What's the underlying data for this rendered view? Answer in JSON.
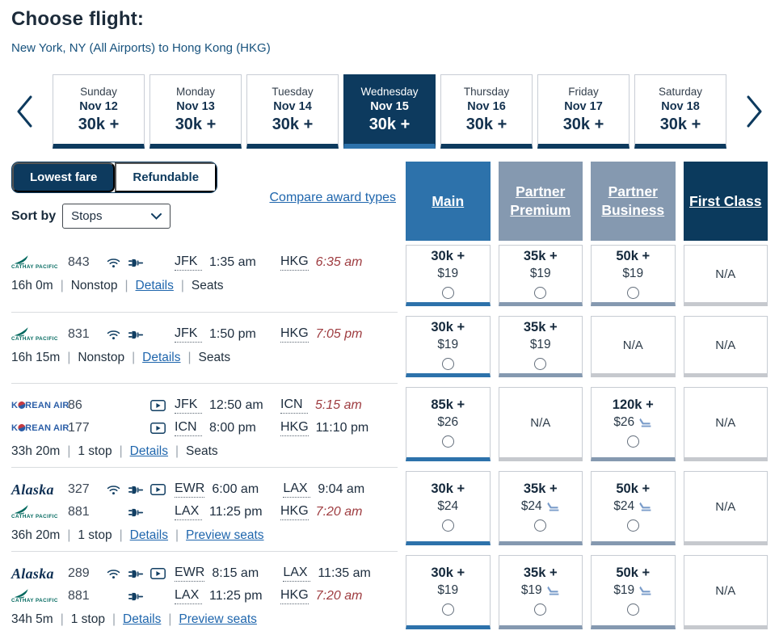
{
  "header": {
    "title": "Choose flight:",
    "subtitle": "New York, NY (All Airports) to Hong Kong (HKG)"
  },
  "colors": {
    "navy": "#0d3a5e",
    "main_blue": "#2d72ab",
    "partner_gray_blue": "#8599b0",
    "link_blue": "#1f66ad",
    "next_day_red": "#9e3c40"
  },
  "carousel": {
    "days": [
      {
        "day": "Sunday",
        "date": "Nov 12",
        "fare": "30k +",
        "selected": false
      },
      {
        "day": "Monday",
        "date": "Nov 13",
        "fare": "30k +",
        "selected": false
      },
      {
        "day": "Tuesday",
        "date": "Nov 14",
        "fare": "30k +",
        "selected": false
      },
      {
        "day": "Wednesday",
        "date": "Nov 15",
        "fare": "30k +",
        "selected": true
      },
      {
        "day": "Thursday",
        "date": "Nov 16",
        "fare": "30k +",
        "selected": false
      },
      {
        "day": "Friday",
        "date": "Nov 17",
        "fare": "30k +",
        "selected": false
      },
      {
        "day": "Saturday",
        "date": "Nov 18",
        "fare": "30k +",
        "selected": false
      }
    ]
  },
  "controls": {
    "toggle": [
      {
        "label": "Lowest fare",
        "selected": true
      },
      {
        "label": "Refundable",
        "selected": false
      }
    ],
    "compare_link": "Compare award types",
    "sort_label": "Sort by",
    "sort_value": "Stops"
  },
  "columns": [
    {
      "label": "Main",
      "style": "main"
    },
    {
      "label": "Partner Premium",
      "style": "partner"
    },
    {
      "label": "Partner Business",
      "style": "partner"
    },
    {
      "label": "First Class",
      "style": "first"
    }
  ],
  "flights": [
    {
      "segments": [
        {
          "logo": "cathay",
          "airline": "CATHAY PACIFIC",
          "flight": "843",
          "amenities": [
            "wifi",
            "power"
          ],
          "from": "JFK",
          "depart": "1:35 am",
          "to": "HKG",
          "arrive": "6:35 am",
          "next_day": true
        }
      ],
      "duration": "16h 0m",
      "stops": "Nonstop",
      "links": [
        {
          "label": "Details",
          "link": true
        },
        {
          "label": "Seats",
          "link": false
        }
      ],
      "fares": [
        {
          "miles": "30k +",
          "cash": "$19",
          "accent": "main",
          "seat": false
        },
        {
          "miles": "35k +",
          "cash": "$19",
          "accent": "partner",
          "seat": false
        },
        {
          "miles": "50k +",
          "cash": "$19",
          "accent": "partner",
          "seat": false
        },
        {
          "na": "N/A"
        }
      ]
    },
    {
      "segments": [
        {
          "logo": "cathay",
          "airline": "CATHAY PACIFIC",
          "flight": "831",
          "amenities": [
            "wifi",
            "power"
          ],
          "from": "JFK",
          "depart": "1:50 pm",
          "to": "HKG",
          "arrive": "7:05 pm",
          "next_day": true
        }
      ],
      "duration": "16h 15m",
      "stops": "Nonstop",
      "links": [
        {
          "label": "Details",
          "link": true
        },
        {
          "label": "Seats",
          "link": false
        }
      ],
      "fares": [
        {
          "miles": "30k +",
          "cash": "$19",
          "accent": "main",
          "seat": false
        },
        {
          "miles": "35k +",
          "cash": "$19",
          "accent": "partner",
          "seat": false
        },
        {
          "na": "N/A"
        },
        {
          "na": "N/A"
        }
      ]
    },
    {
      "segments": [
        {
          "logo": "korean",
          "airline": "KOREAN AIR",
          "flight": "86",
          "amenities": [
            "entertainment"
          ],
          "from": "JFK",
          "depart": "12:50 am",
          "to": "ICN",
          "arrive": "5:15 am",
          "next_day": true
        },
        {
          "logo": "korean",
          "airline": "KOREAN AIR",
          "flight": "177",
          "amenities": [
            "entertainment"
          ],
          "from": "ICN",
          "depart": "8:00 pm",
          "to": "HKG",
          "arrive": "11:10 pm",
          "next_day": false
        }
      ],
      "duration": "33h 20m",
      "stops": "1 stop",
      "links": [
        {
          "label": "Details",
          "link": true
        },
        {
          "label": "Seats",
          "link": false
        }
      ],
      "fares": [
        {
          "miles": "85k +",
          "cash": "$26",
          "accent": "main",
          "seat": false
        },
        {
          "na": "N/A"
        },
        {
          "miles": "120k +",
          "cash": "$26",
          "accent": "partner",
          "seat": true
        },
        {
          "na": "N/A"
        }
      ]
    },
    {
      "segments": [
        {
          "logo": "alaska",
          "airline": "Alaska",
          "flight": "327",
          "amenities": [
            "wifi",
            "power",
            "entertainment"
          ],
          "from": "EWR",
          "depart": "6:00 am",
          "to": "LAX",
          "arrive": "9:04 am",
          "next_day": false
        },
        {
          "logo": "cathay",
          "airline": "CATHAY PACIFIC",
          "flight": "881",
          "amenities": [
            "power"
          ],
          "from": "LAX",
          "depart": "11:25 pm",
          "to": "HKG",
          "arrive": "7:20 am",
          "next_day": true
        }
      ],
      "duration": "36h 20m",
      "stops": "1 stop",
      "links": [
        {
          "label": "Details",
          "link": true
        },
        {
          "label": "Preview seats",
          "link": true
        }
      ],
      "fares": [
        {
          "miles": "30k +",
          "cash": "$24",
          "accent": "main",
          "seat": false
        },
        {
          "miles": "35k +",
          "cash": "$24",
          "accent": "partner",
          "seat": true
        },
        {
          "miles": "50k +",
          "cash": "$24",
          "accent": "partner",
          "seat": true
        },
        {
          "na": "N/A"
        }
      ]
    },
    {
      "segments": [
        {
          "logo": "alaska",
          "airline": "Alaska",
          "flight": "289",
          "amenities": [
            "wifi",
            "power",
            "entertainment"
          ],
          "from": "EWR",
          "depart": "8:15 am",
          "to": "LAX",
          "arrive": "11:35 am",
          "next_day": false
        },
        {
          "logo": "cathay",
          "airline": "CATHAY PACIFIC",
          "flight": "881",
          "amenities": [
            "power"
          ],
          "from": "LAX",
          "depart": "11:25 pm",
          "to": "HKG",
          "arrive": "7:20 am",
          "next_day": true
        }
      ],
      "duration": "34h 5m",
      "stops": "1 stop",
      "links": [
        {
          "label": "Details",
          "link": true
        },
        {
          "label": "Preview seats",
          "link": true
        }
      ],
      "fares": [
        {
          "miles": "30k +",
          "cash": "$19",
          "accent": "main",
          "seat": false
        },
        {
          "miles": "35k +",
          "cash": "$19",
          "accent": "partner",
          "seat": true
        },
        {
          "miles": "50k +",
          "cash": "$19",
          "accent": "partner",
          "seat": true
        },
        {
          "na": "N/A"
        }
      ]
    }
  ]
}
